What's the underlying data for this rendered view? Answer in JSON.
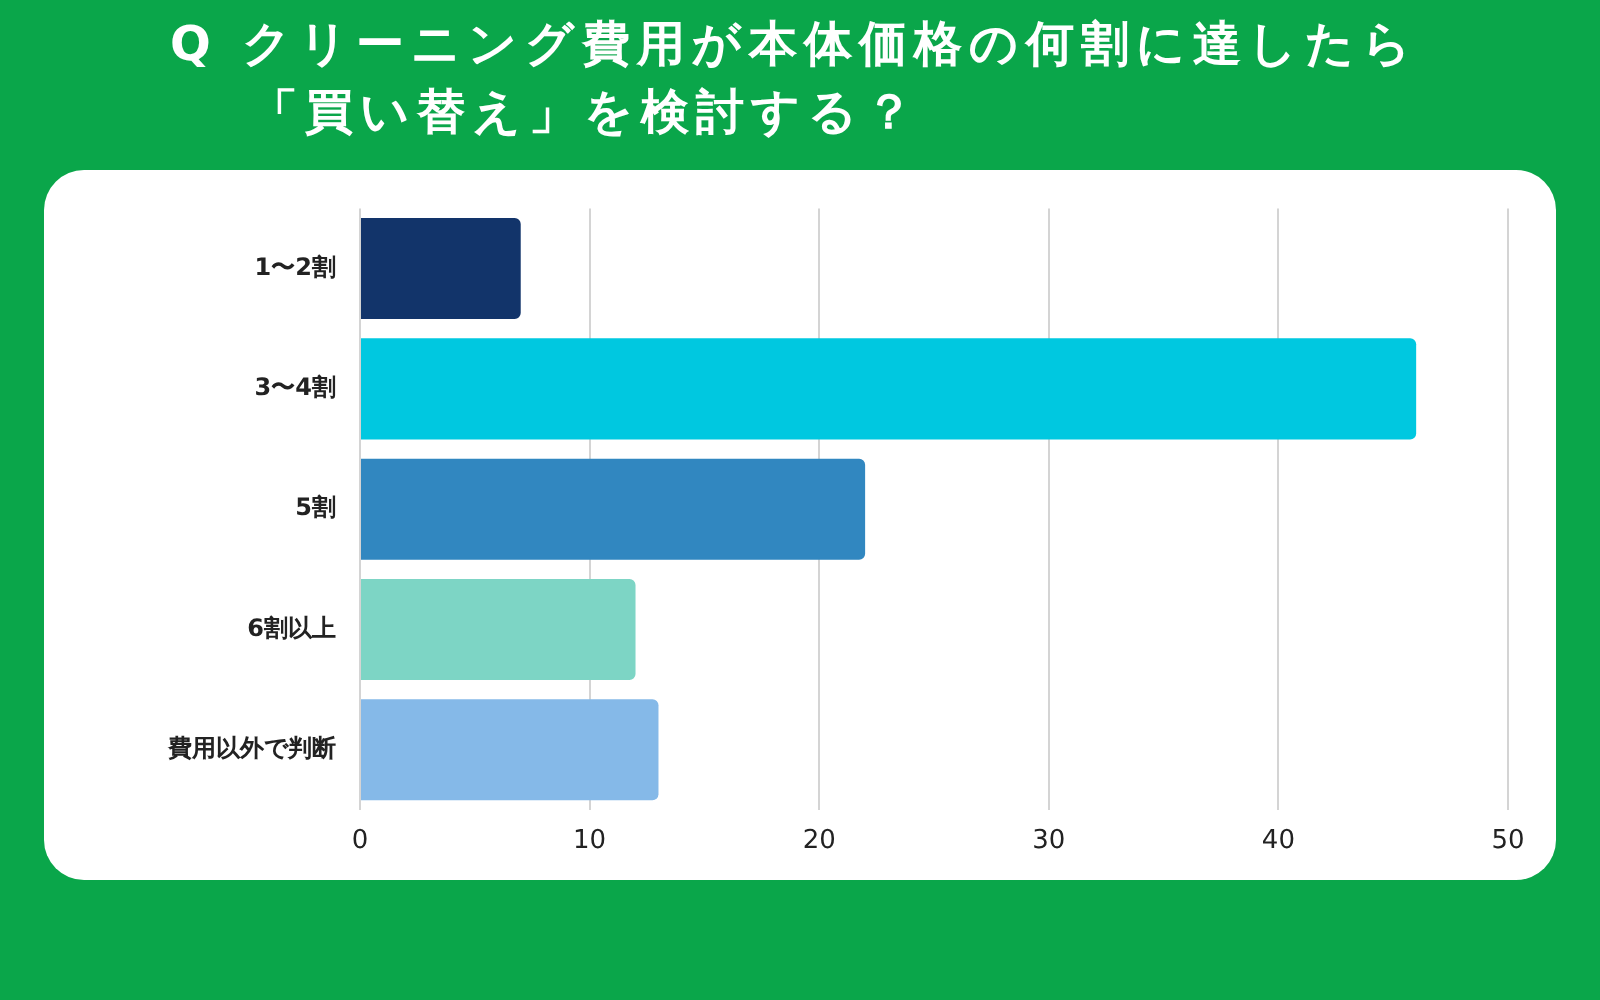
{
  "chart_data": {
    "type": "bar",
    "orientation": "horizontal",
    "title": "Q クリーニング費用が本体価格の何割に達したら「買い替え」を検討する？",
    "categories": [
      "1〜2割",
      "3〜4割",
      "5割",
      "6割以上",
      "費用以外で判断"
    ],
    "values": [
      7,
      46,
      22,
      12,
      13
    ],
    "colors": [
      "#12346a",
      "#00c8e0",
      "#3187c0",
      "#7dd5c5",
      "#85b9e8"
    ],
    "xlim": [
      0,
      50
    ],
    "xticks": [
      0,
      10,
      20,
      30,
      40,
      50
    ],
    "grid": "x",
    "legend": false
  }
}
